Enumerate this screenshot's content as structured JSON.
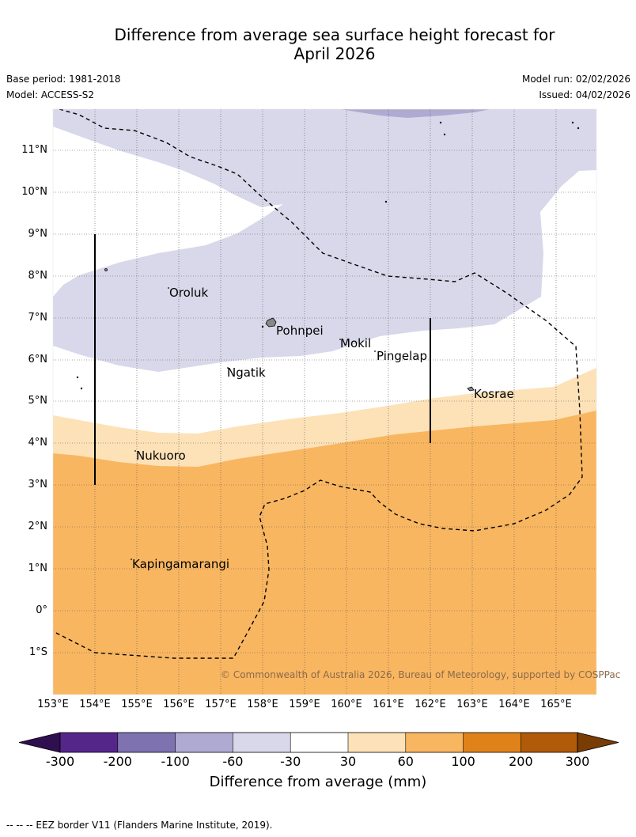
{
  "title": {
    "line1": "Difference from average sea surface height forecast for",
    "line2": "April 2026"
  },
  "meta": {
    "base_period": "Base period: 1981-2018",
    "model": "Model: ACCESS-S2",
    "model_run": "Model run: 02/02/2026",
    "issued": "Issued: 04/02/2026"
  },
  "map": {
    "lat_labels": [
      "11°N",
      "10°N",
      "9°N",
      "8°N",
      "7°N",
      "6°N",
      "5°N",
      "4°N",
      "3°N",
      "2°N",
      "1°N",
      "0°",
      "1°S"
    ],
    "lon_labels": [
      "153°E",
      "154°E",
      "155°E",
      "156°E",
      "157°E",
      "158°E",
      "159°E",
      "160°E",
      "161°E",
      "162°E",
      "163°E",
      "164°E",
      "165°E"
    ],
    "places": [
      "Oroluk",
      "Pohnpei",
      "Mokil",
      "Pingelap",
      "Ngatik",
      "Kosrae",
      "Nukuoro",
      "Kapingamarangi"
    ],
    "copyright": "© Commonwealth of Australia 2026, Bureau of Meteorology, supported by COSPPac"
  },
  "colorbar": {
    "ticks": [
      "-300",
      "-200",
      "-100",
      "-60",
      "-30",
      "30",
      "60",
      "100",
      "200",
      "300"
    ],
    "colors": [
      "#2f0f4f",
      "#54268a",
      "#7e72b0",
      "#aeaad1",
      "#d8d8ea",
      "#ffffff",
      "#fde2b8",
      "#f9b661",
      "#e0821a",
      "#b15a0a",
      "#7a3c05"
    ],
    "label": "Difference from average (mm)"
  },
  "footnote": "--  --  -- EEZ border V11 (Flanders Marine Institute, 2019)."
}
